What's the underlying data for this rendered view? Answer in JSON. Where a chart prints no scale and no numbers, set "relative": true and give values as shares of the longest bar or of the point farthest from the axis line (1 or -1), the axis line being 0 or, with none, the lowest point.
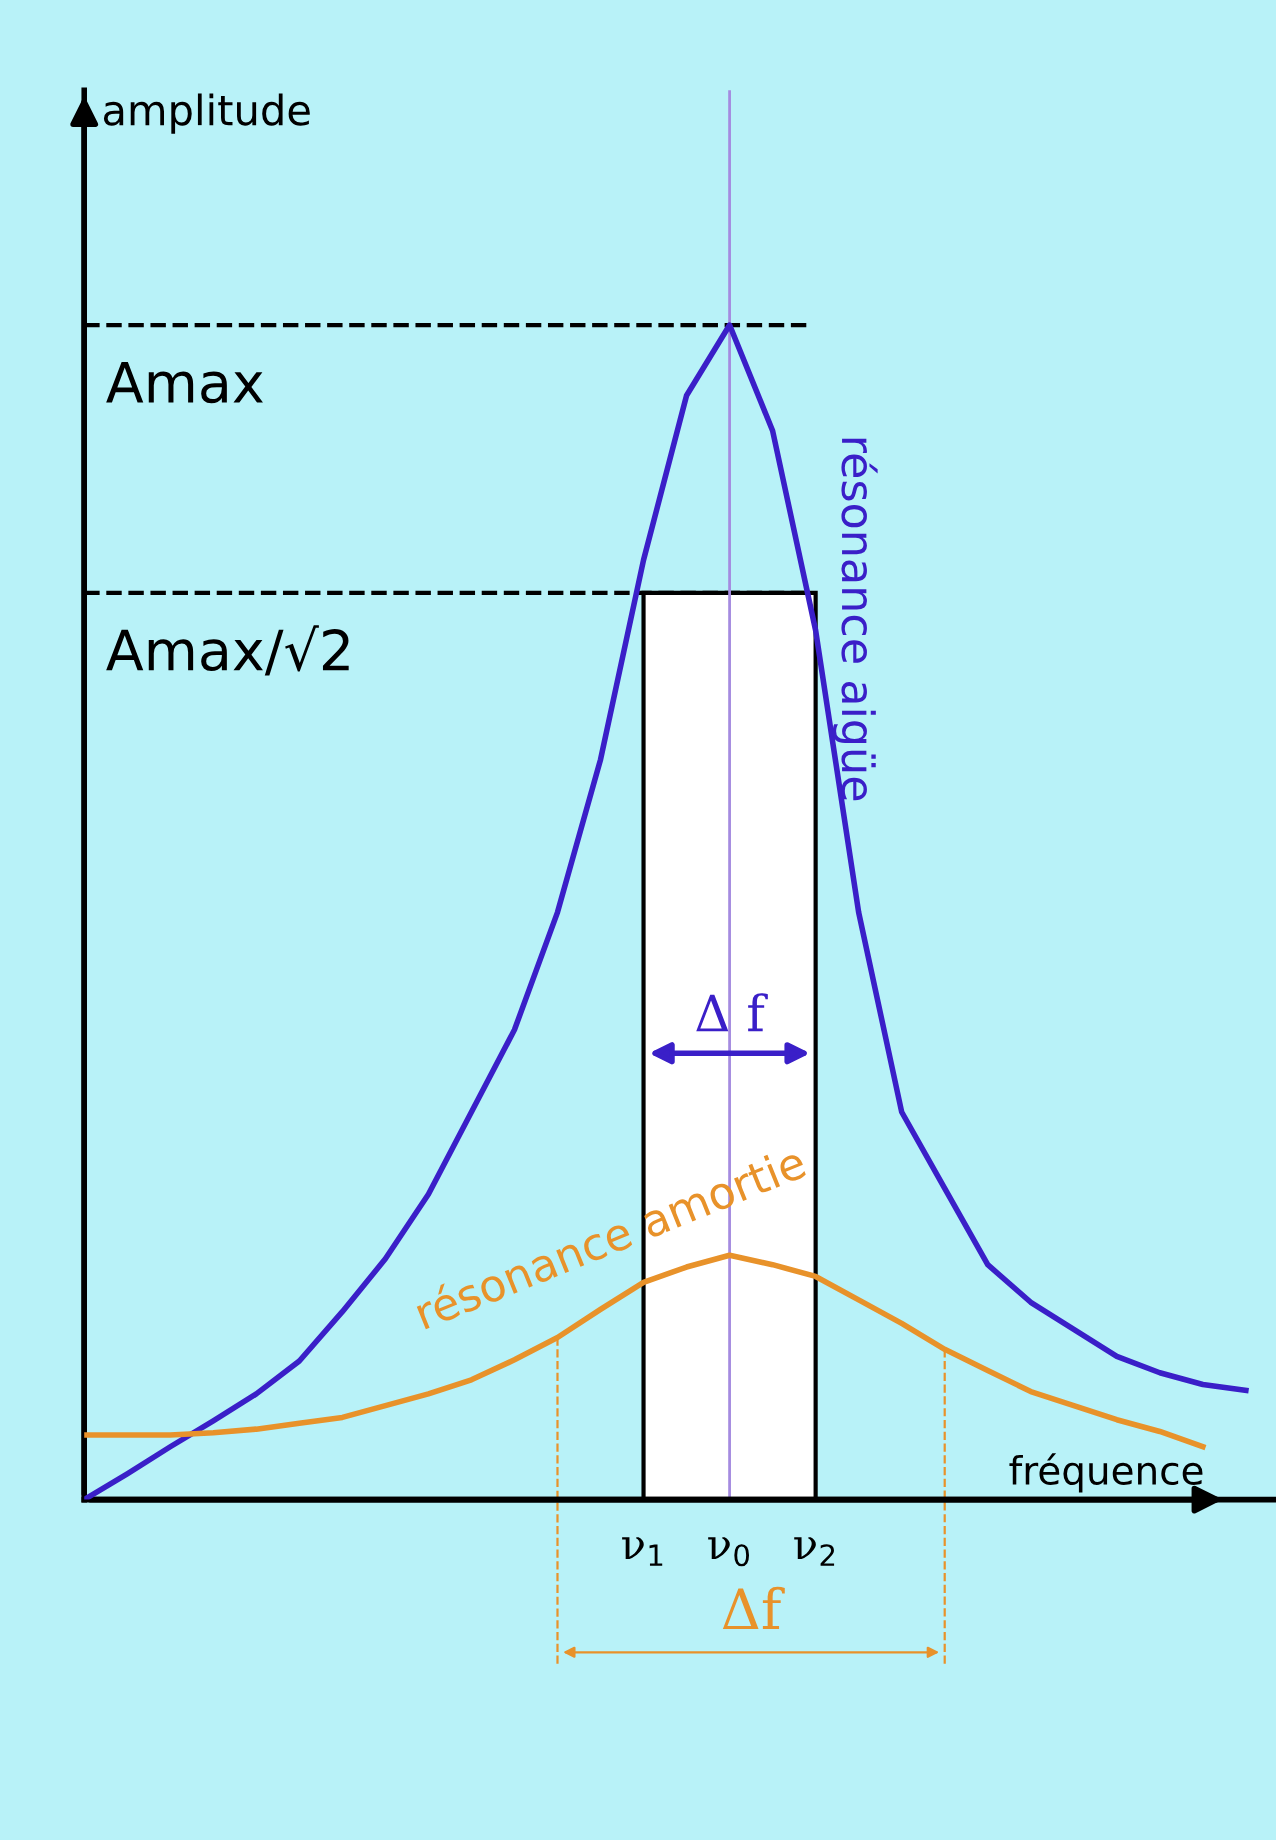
{
  "chart_data": {
    "type": "line",
    "relative": true,
    "xlabel": "fréquence",
    "ylabel": "amplitude",
    "categories": [
      null,
      null,
      null,
      null,
      null,
      null,
      null,
      null,
      null,
      null,
      null,
      null,
      null,
      "ν$_{1}$",
      null,
      "ν$_{0}$",
      null,
      "ν$_{2}$",
      null,
      null,
      null,
      null,
      null,
      null,
      null,
      null,
      null,
      null
    ],
    "series": [
      {
        "name": "résonance aigüe",
        "color": "#3a1fc8",
        "values": [
          0,
          0.022,
          0.045,
          0.067,
          0.09,
          0.118,
          0.16,
          0.205,
          0.26,
          0.33,
          0.4,
          0.5,
          0.63,
          0.8,
          0.94,
          1.0,
          0.91,
          0.74,
          0.5,
          0.33,
          0.265,
          0.2,
          0.168,
          0.145,
          0.122,
          0.108,
          0.098,
          0.093
        ]
      },
      {
        "name": "résonance amortie",
        "color": "#e8922a",
        "values": [
          0.055,
          0.055,
          0.055,
          0.057,
          0.06,
          0.065,
          0.07,
          0.08,
          0.09,
          0.102,
          0.119,
          0.138,
          0.162,
          0.185,
          0.198,
          0.208,
          0.2,
          0.19,
          0.17,
          0.15,
          0.128,
          0.11,
          0.092,
          0.08,
          0.068,
          0.058,
          0.045,
          null
        ]
      }
    ],
    "ref_lines": [
      {
        "axis": "y",
        "value": 1.0,
        "label": "Amax",
        "line_style": "dashed",
        "color": "#000000"
      },
      {
        "axis": "y",
        "value": 0.772,
        "label": "Amax/√2",
        "line_style": "dashed",
        "color": "#000000"
      },
      {
        "axis": "x",
        "value": "ν$_{0}$",
        "color": "#a58be0",
        "line_style": "solid"
      }
    ],
    "bands": [
      {
        "axis": "x",
        "from": "ν$_{1}$",
        "to": "ν$_{2}$",
        "label": "Δ f",
        "color": "#ffffff"
      }
    ],
    "annotations": [
      "Δf"
    ],
    "grid": false,
    "legend": false,
    "line_style": "solid",
    "marker": "none"
  }
}
